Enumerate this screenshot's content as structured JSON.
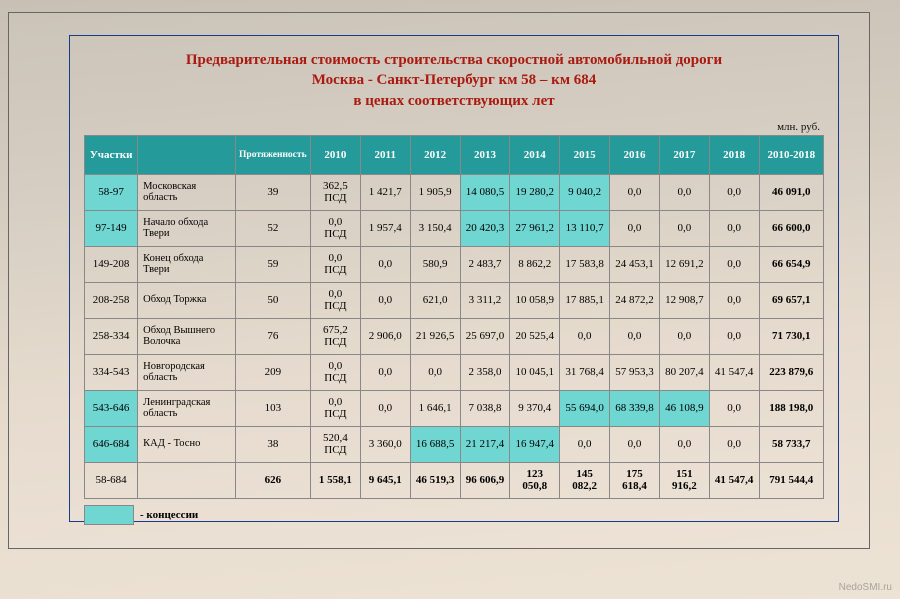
{
  "title_lines": [
    "Предварительная стоимость строительства скоростной автомобильной дороги",
    "Москва - Санкт-Петербург км 58 – км 684",
    "в ценах соответствующих лет"
  ],
  "unit_label": "млн. руб.",
  "colors": {
    "header_bg": "#259a9a",
    "header_fg": "#ffffff",
    "teal_cell": "#6fd6d2",
    "frame_border": "#1a3a8a",
    "title_color": "#aa1a10"
  },
  "headers": {
    "seg": "Участки",
    "name": "",
    "len": "Протяженность",
    "y2010": "2010",
    "y2011": "2011",
    "y2012": "2012",
    "y2013": "2013",
    "y2014": "2014",
    "y2015": "2015",
    "y2016": "2016",
    "y2017": "2017",
    "y2018": "2018",
    "total": "2010-2018"
  },
  "rows": [
    {
      "seg": "58-97",
      "name": "Московская область",
      "len": "39",
      "y2010": "362,5 ПСД",
      "y2011": "1 421,7",
      "y2012": "1 905,9",
      "y2013": "14 080,5",
      "y2014": "19 280,2",
      "y2015": "9 040,2",
      "y2016": "0,0",
      "y2017": "0,0",
      "y2018": "0,0",
      "total": "46 091,0",
      "teal": {
        "seg": true,
        "y2013": true,
        "y2014": true,
        "y2015": true
      }
    },
    {
      "seg": "97-149",
      "name": "Начало обхода Твери",
      "len": "52",
      "y2010": "0,0 ПСД",
      "y2011": "1 957,4",
      "y2012": "3 150,4",
      "y2013": "20 420,3",
      "y2014": "27 961,2",
      "y2015": "13 110,7",
      "y2016": "0,0",
      "y2017": "0,0",
      "y2018": "0,0",
      "total": "66 600,0",
      "teal": {
        "seg": true,
        "y2013": true,
        "y2014": true,
        "y2015": true
      }
    },
    {
      "seg": "149-208",
      "name": "Конец обхода Твери",
      "len": "59",
      "y2010": "0,0 ПСД",
      "y2011": "0,0",
      "y2012": "580,9",
      "y2013": "2 483,7",
      "y2014": "8 862,2",
      "y2015": "17 583,8",
      "y2016": "24 453,1",
      "y2017": "12 691,2",
      "y2018": "0,0",
      "total": "66 654,9",
      "teal": {}
    },
    {
      "seg": "208-258",
      "name": "Обход Торжка",
      "len": "50",
      "y2010": "0,0 ПСД",
      "y2011": "0,0",
      "y2012": "621,0",
      "y2013": "3 311,2",
      "y2014": "10 058,9",
      "y2015": "17 885,1",
      "y2016": "24 872,2",
      "y2017": "12 908,7",
      "y2018": "0,0",
      "total": "69 657,1",
      "teal": {}
    },
    {
      "seg": "258-334",
      "name": "Обход Вышнего Волочка",
      "len": "76",
      "y2010": "675,2 ПСД",
      "y2011": "2 906,0",
      "y2012": "21 926,5",
      "y2013": "25 697,0",
      "y2014": "20 525,4",
      "y2015": "0,0",
      "y2016": "0,0",
      "y2017": "0,0",
      "y2018": "0,0",
      "total": "71 730,1",
      "teal": {}
    },
    {
      "seg": "334-543",
      "name": "Новгородская область",
      "len": "209",
      "y2010": "0,0 ПСД",
      "y2011": "0,0",
      "y2012": "0,0",
      "y2013": "2 358,0",
      "y2014": "10 045,1",
      "y2015": "31 768,4",
      "y2016": "57 953,3",
      "y2017": "80 207,4",
      "y2018": "41 547,4",
      "total": "223 879,6",
      "teal": {}
    },
    {
      "seg": "543-646",
      "name": "Ленинградская область",
      "len": "103",
      "y2010": "0,0 ПСД",
      "y2011": "0,0",
      "y2012": "1 646,1",
      "y2013": "7 038,8",
      "y2014": "9 370,4",
      "y2015": "55 694,0",
      "y2016": "68 339,8",
      "y2017": "46 108,9",
      "y2018": "0,0",
      "total": "188 198,0",
      "teal": {
        "seg": true,
        "y2015": true,
        "y2016": true,
        "y2017": true
      }
    },
    {
      "seg": "646-684",
      "name": "КАД - Тосно",
      "len": "38",
      "y2010": "520,4 ПСД",
      "y2011": "3 360,0",
      "y2012": "16 688,5",
      "y2013": "21 217,4",
      "y2014": "16 947,4",
      "y2015": "0,0",
      "y2016": "0,0",
      "y2017": "0,0",
      "y2018": "0,0",
      "total": "58 733,7",
      "teal": {
        "seg": true,
        "y2012": true,
        "y2013": true,
        "y2014": true
      }
    }
  ],
  "total_row": {
    "seg": "58-684",
    "name": "",
    "len": "626",
    "y2010": "1 558,1",
    "y2011": "9 645,1",
    "y2012": "46 519,3",
    "y2013": "96 606,9",
    "y2014": "123 050,8",
    "y2015": "145 082,2",
    "y2016": "175 618,4",
    "y2017": "151 916,2",
    "y2018": "41 547,4",
    "total": "791 544,4"
  },
  "legend_label": "- концессии",
  "watermark": "NedoSMI.ru"
}
